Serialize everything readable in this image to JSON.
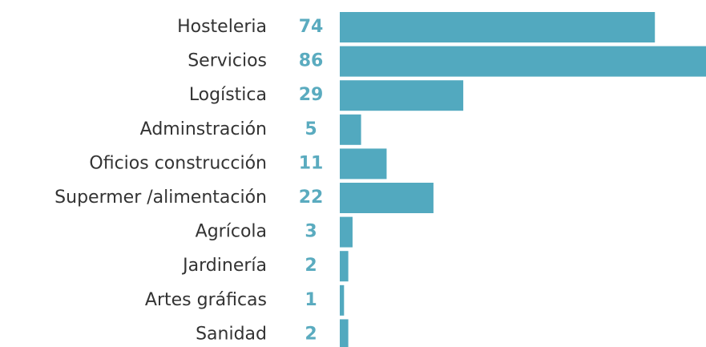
{
  "chart_data": {
    "type": "barh",
    "categories": [
      "Hosteleria",
      "Servicios",
      "Logística",
      "Adminstración",
      "Oficios construcción",
      "Supermer /alimentación",
      "Agrícola",
      "Jardinería",
      "Artes gráficas",
      "Sanidad"
    ],
    "values": [
      74,
      86,
      29,
      5,
      11,
      22,
      3,
      2,
      1,
      2
    ],
    "color": "#52a9bf"
  }
}
